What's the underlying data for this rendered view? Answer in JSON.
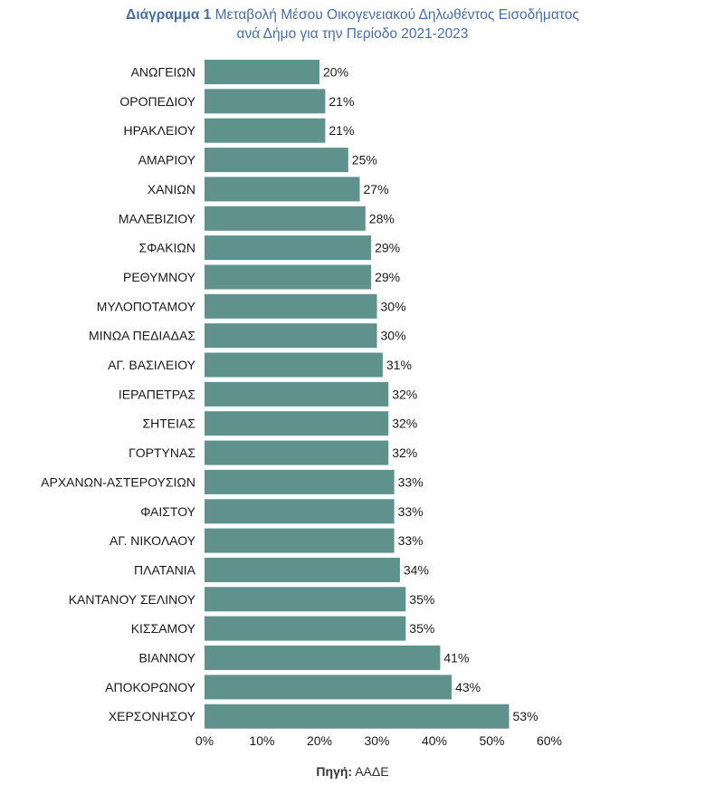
{
  "header": {
    "prefix": "Διάγραμμα  1",
    "line1": "Μεταβολή Μέσου Οικογενειακού Δηλωθέντος Εισοδήματος",
    "line2": "ανά Δήμο για την Περίοδο 2021-2023"
  },
  "footer": {
    "label": "Πηγή:",
    "value": "ΑΑΔΕ"
  },
  "colors": {
    "bar": "#5f918d",
    "title": "#4a6e9e"
  },
  "chart_data": {
    "type": "bar",
    "orientation": "horizontal",
    "categories": [
      "ΑΝΩΓΕΙΩΝ",
      "ΟΡΟΠΕΔΙΟΥ",
      "ΗΡΑΚΛΕΙΟΥ",
      "ΑΜΑΡΙΟΥ",
      "ΧΑΝΙΩΝ",
      "ΜΑΛΕΒΙΖΙΟΥ",
      "ΣΦΑΚΙΩΝ",
      "ΡΕΘΥΜΝΟΥ",
      "ΜΥΛΟΠΟΤΑΜΟΥ",
      "ΜΙΝΩΑ ΠΕΔΙΑΔΑΣ",
      "ΑΓ. ΒΑΣΙΛΕΙΟΥ",
      "ΙΕΡΑΠΕΤΡΑΣ",
      "ΣΗΤΕΙΑΣ",
      "ΓΟΡΤΥΝΑΣ",
      "ΑΡΧΑΝΩΝ-ΑΣΤΕΡΟΥΣΙΩΝ",
      "ΦΑΙΣΤΟΥ",
      "ΑΓ. ΝΙΚΟΛΑΟΥ",
      "ΠΛΑΤΑΝΙΑ",
      "ΚΑΝΤΑΝΟΥ ΣΕΛΙΝΟΥ",
      "ΚΙΣΣΑΜΟΥ",
      "ΒΙΑΝΝΟΥ",
      "ΑΠΟΚΟΡΩΝΟΥ",
      "ΧΕΡΣΟΝΗΣΟΥ"
    ],
    "values": [
      20,
      21,
      21,
      25,
      27,
      28,
      29,
      29,
      30,
      30,
      31,
      32,
      32,
      32,
      33,
      33,
      33,
      34,
      35,
      35,
      41,
      43,
      53
    ],
    "value_labels": [
      "20%",
      "21%",
      "21%",
      "25%",
      "27%",
      "28%",
      "29%",
      "29%",
      "30%",
      "30%",
      "31%",
      "32%",
      "32%",
      "32%",
      "33%",
      "33%",
      "33%",
      "34%",
      "35%",
      "35%",
      "41%",
      "43%",
      "53%"
    ],
    "xlim": [
      0,
      60
    ],
    "xticks": [
      0,
      10,
      20,
      30,
      40,
      50,
      60
    ],
    "xtick_labels": [
      "0%",
      "10%",
      "20%",
      "30%",
      "40%",
      "50%",
      "60%"
    ],
    "grid": false,
    "legend": "none"
  }
}
